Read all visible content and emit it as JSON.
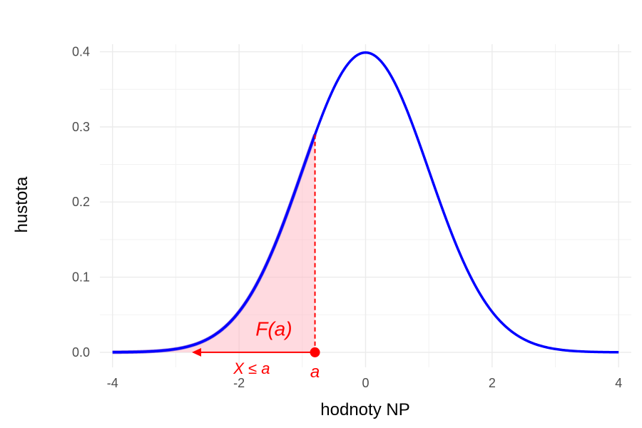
{
  "chart_data": {
    "type": "line",
    "title": "",
    "xlabel": "hodnoty NP",
    "ylabel": "hustota",
    "xlim": [
      -4.2,
      4.2
    ],
    "ylim": [
      -0.02,
      0.41
    ],
    "x_ticks": [
      -4,
      -2,
      0,
      2,
      4
    ],
    "x_tick_labels": [
      "-4",
      "-2",
      "0",
      "2",
      "4"
    ],
    "y_ticks": [
      0.0,
      0.1,
      0.2,
      0.3,
      0.4
    ],
    "y_tick_labels": [
      "0.0",
      "0.1",
      "0.2",
      "0.3",
      "0.4"
    ],
    "grid": true,
    "series": [
      {
        "kind": "normal-density-curve",
        "mean": 0,
        "sd": 1,
        "x_range": [
          -4,
          4
        ],
        "color": "#0000ff"
      }
    ],
    "shaded_area": {
      "from": -4,
      "to": -0.8,
      "fill": "#ffb6c1",
      "edge_color": "#9370db"
    },
    "a_value": -0.8,
    "arrow_to_x": -2.7,
    "accent_color": "#ff0000",
    "annotations": {
      "area_label": "F(a)",
      "point_label": "a",
      "event_label": "X ≤ a"
    }
  }
}
